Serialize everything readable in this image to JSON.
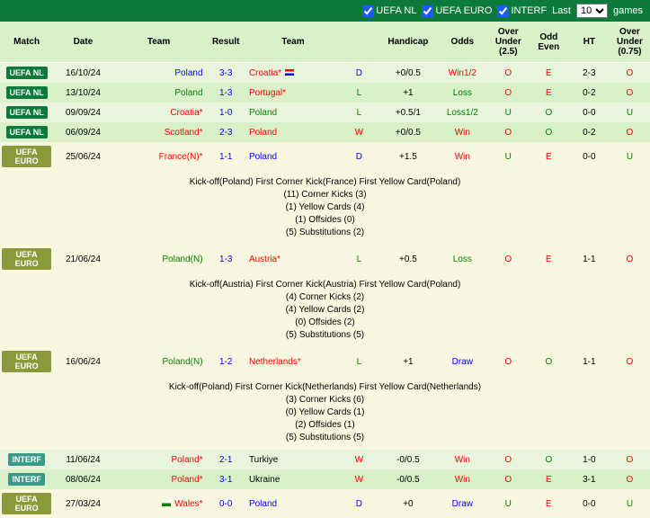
{
  "filters": {
    "items": [
      {
        "label": "UEFA NL",
        "checked": true
      },
      {
        "label": "UEFA EURO",
        "checked": true
      },
      {
        "label": "INTERF",
        "checked": true
      }
    ],
    "last_label_pre": "Last",
    "last_value": "10",
    "last_label_post": "games"
  },
  "columns": [
    "Match",
    "Date",
    "Team",
    "Result",
    "Team",
    "Handicap",
    "Odds",
    "Over Under (2.5)",
    "Odd Even",
    "HT",
    "Over Under (0.75)"
  ],
  "rows": [
    {
      "type": "match",
      "bg": "row-green1",
      "badge": "UEFA NL",
      "badge_cls": "badge-darkgreen",
      "date": "16/10/24",
      "team1": "Poland",
      "team1_cls": "blue",
      "team1_flag": "",
      "score": "3-3",
      "score_cls": "blue",
      "team2": "Croatia*",
      "team2_cls": "red",
      "team2_flag": "flag-hr",
      "wdl": "D",
      "wdl_cls": "blue",
      "handicap": "+0/0.5",
      "odds": "Win1/2",
      "odds_cls": "red",
      "ou25": "O",
      "ou25_cls": "red",
      "oe": "E",
      "oe_cls": "red",
      "ht": "2-3",
      "ou075": "O",
      "ou075_cls": "red"
    },
    {
      "type": "match",
      "bg": "row-green2",
      "badge": "UEFA NL",
      "badge_cls": "badge-darkgreen",
      "date": "13/10/24",
      "team1": "Poland",
      "team1_cls": "green",
      "team1_flag": "",
      "score": "1-3",
      "score_cls": "blue",
      "team2": "Portugal*",
      "team2_cls": "red",
      "team2_flag": "",
      "wdl": "L",
      "wdl_cls": "green",
      "handicap": "+1",
      "odds": "Loss",
      "odds_cls": "green",
      "ou25": "O",
      "ou25_cls": "red",
      "oe": "E",
      "oe_cls": "red",
      "ht": "0-2",
      "ou075": "O",
      "ou075_cls": "red"
    },
    {
      "type": "match",
      "bg": "row-green1",
      "badge": "UEFA NL",
      "badge_cls": "badge-darkgreen",
      "date": "09/09/24",
      "team1": "Croatia*",
      "team1_cls": "red",
      "team1_flag": "",
      "score": "1-0",
      "score_cls": "blue",
      "team2": "Poland",
      "team2_cls": "green",
      "team2_flag": "",
      "wdl": "L",
      "wdl_cls": "green",
      "handicap": "+0.5/1",
      "odds": "Loss1/2",
      "odds_cls": "green",
      "ou25": "U",
      "ou25_cls": "green",
      "oe": "O",
      "oe_cls": "green",
      "ht": "0-0",
      "ou075": "U",
      "ou075_cls": "green"
    },
    {
      "type": "match",
      "bg": "row-green2",
      "badge": "UEFA NL",
      "badge_cls": "badge-darkgreen",
      "date": "06/09/24",
      "team1": "Scotland*",
      "team1_cls": "red",
      "team1_flag": "",
      "score": "2-3",
      "score_cls": "blue",
      "team2": "Poland",
      "team2_cls": "red",
      "team2_flag": "",
      "wdl": "W",
      "wdl_cls": "red",
      "handicap": "+0/0.5",
      "odds": "Win",
      "odds_cls": "red",
      "ou25": "O",
      "ou25_cls": "red",
      "oe": "O",
      "oe_cls": "green",
      "ht": "0-2",
      "ou075": "O",
      "ou075_cls": "red"
    },
    {
      "type": "match",
      "bg": "row-cream",
      "badge": "UEFA EURO",
      "badge_cls": "badge-olive",
      "date": "25/06/24",
      "team1": "France(N)*",
      "team1_cls": "red",
      "team1_flag": "",
      "score": "1-1",
      "score_cls": "blue",
      "team2": "Poland",
      "team2_cls": "blue",
      "team2_flag": "",
      "wdl": "D",
      "wdl_cls": "blue",
      "handicap": "+1.5",
      "odds": "Win",
      "odds_cls": "red",
      "ou25": "U",
      "ou25_cls": "green",
      "oe": "E",
      "oe_cls": "red",
      "ht": "0-0",
      "ou075": "U",
      "ou075_cls": "green"
    },
    {
      "type": "detail",
      "lines": [
        "Kick-off(Poland)   First Corner Kick(France)   First Yellow Card(Poland)",
        "(11) Corner Kicks (3)",
        "(1) Yellow Cards (4)",
        "(1) Offsides (0)",
        "(5) Substitutions (2)"
      ]
    },
    {
      "type": "match",
      "bg": "row-cream",
      "badge": "UEFA EURO",
      "badge_cls": "badge-olive",
      "date": "21/06/24",
      "team1": "Poland(N)",
      "team1_cls": "green",
      "team1_flag": "",
      "score": "1-3",
      "score_cls": "blue",
      "team2": "Austria*",
      "team2_cls": "red",
      "team2_flag": "",
      "wdl": "L",
      "wdl_cls": "green",
      "handicap": "+0.5",
      "odds": "Loss",
      "odds_cls": "green",
      "ou25": "O",
      "ou25_cls": "red",
      "oe": "E",
      "oe_cls": "red",
      "ht": "1-1",
      "ou075": "O",
      "ou075_cls": "red"
    },
    {
      "type": "detail",
      "lines": [
        "Kick-off(Austria)   First Corner Kick(Austria)   First Yellow Card(Poland)",
        "(4) Corner Kicks (2)",
        "(4) Yellow Cards (2)",
        "(0) Offsides (2)",
        "(5) Substitutions (5)"
      ]
    },
    {
      "type": "match",
      "bg": "row-cream",
      "badge": "UEFA EURO",
      "badge_cls": "badge-olive",
      "date": "16/06/24",
      "team1": "Poland(N)",
      "team1_cls": "green",
      "team1_flag": "",
      "score": "1-2",
      "score_cls": "blue",
      "team2": "Netherlands*",
      "team2_cls": "red",
      "team2_flag": "",
      "wdl": "L",
      "wdl_cls": "green",
      "handicap": "+1",
      "odds": "Draw",
      "odds_cls": "blue",
      "ou25": "O",
      "ou25_cls": "red",
      "oe": "O",
      "oe_cls": "green",
      "ht": "1-1",
      "ou075": "O",
      "ou075_cls": "red"
    },
    {
      "type": "detail",
      "lines": [
        "Kick-off(Poland)   First Corner Kick(Netherlands)   First Yellow Card(Netherlands)",
        "(3) Corner Kicks (6)",
        "(0) Yellow Cards (1)",
        "(2) Offsides (1)",
        "(5) Substitutions (5)"
      ]
    },
    {
      "type": "match",
      "bg": "row-green1",
      "badge": "INTERF",
      "badge_cls": "badge-teal",
      "date": "11/06/24",
      "team1": "Poland*",
      "team1_cls": "red",
      "team1_flag": "",
      "score": "2-1",
      "score_cls": "blue",
      "team2": "Turkiye",
      "team2_cls": "black",
      "team2_flag": "",
      "wdl": "W",
      "wdl_cls": "red",
      "handicap": "-0/0.5",
      "odds": "Win",
      "odds_cls": "red",
      "ou25": "O",
      "ou25_cls": "red",
      "oe": "O",
      "oe_cls": "green",
      "ht": "1-0",
      "ou075": "O",
      "ou075_cls": "red"
    },
    {
      "type": "match",
      "bg": "row-green2",
      "badge": "INTERF",
      "badge_cls": "badge-teal",
      "date": "08/06/24",
      "team1": "Poland*",
      "team1_cls": "red",
      "team1_flag": "",
      "score": "3-1",
      "score_cls": "blue",
      "team2": "Ukraine",
      "team2_cls": "black",
      "team2_flag": "",
      "wdl": "W",
      "wdl_cls": "red",
      "handicap": "-0/0.5",
      "odds": "Win",
      "odds_cls": "red",
      "ou25": "O",
      "ou25_cls": "red",
      "oe": "E",
      "oe_cls": "red",
      "ht": "3-1",
      "ou075": "O",
      "ou075_cls": "red"
    },
    {
      "type": "match",
      "bg": "row-cream",
      "badge": "UEFA EURO",
      "badge_cls": "badge-olive",
      "date": "27/03/24",
      "team1": "Wales*",
      "team1_cls": "red",
      "team1_flag": "flag-wa",
      "score": "0-0",
      "score_cls": "blue",
      "team2": "Poland",
      "team2_cls": "blue",
      "team2_flag": "",
      "wdl": "D",
      "wdl_cls": "blue",
      "handicap": "+0",
      "odds": "Draw",
      "odds_cls": "blue",
      "ou25": "U",
      "ou25_cls": "green",
      "oe": "E",
      "oe_cls": "red",
      "ht": "0-0",
      "ou075": "U",
      "ou075_cls": "green"
    }
  ]
}
